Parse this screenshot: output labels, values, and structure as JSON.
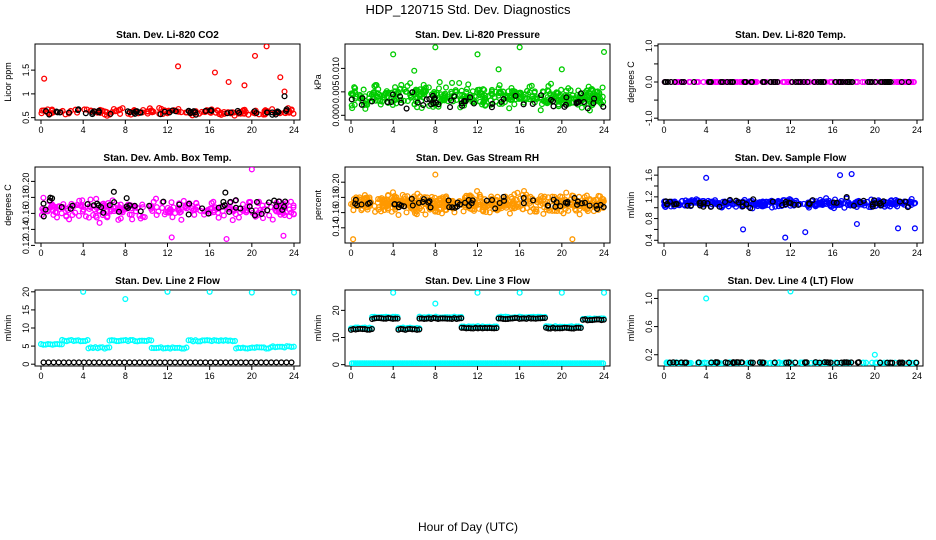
{
  "page": {
    "title": "HDP_120715  Std. Dev. Diagnostics",
    "x_axis_label": "Hour of Day (UTC)"
  },
  "chart_data": [
    {
      "type": "scatter",
      "title": "Stan. Dev. Li-820 CO2",
      "ylabel": "Licor ppm",
      "xlim": [
        0,
        24
      ],
      "ylim": [
        0.45,
        2.05
      ],
      "x_ticks": [
        0,
        4,
        8,
        12,
        16,
        20,
        24
      ],
      "y_ticks": [
        0.5,
        1.0,
        1.5
      ],
      "y_tick_labels": [
        "0.5",
        "1",
        "1.5"
      ],
      "series": [
        {
          "color": "#ff0000",
          "base": 0.62,
          "spread": 0.12,
          "count": 150,
          "outliers": [
            [
              0.3,
              1.32
            ],
            [
              13.0,
              1.58
            ],
            [
              16.5,
              1.45
            ],
            [
              17.8,
              1.25
            ],
            [
              19.3,
              1.18
            ],
            [
              20.3,
              1.8
            ],
            [
              21.4,
              2.0
            ],
            [
              22.7,
              1.35
            ],
            [
              23.1,
              1.05
            ]
          ]
        },
        {
          "color": "#000000",
          "base": 0.62,
          "spread": 0.09,
          "count": 55,
          "outliers": [
            [
              23.1,
              0.95
            ]
          ]
        }
      ]
    },
    {
      "type": "scatter",
      "title": "Stan. Dev. Li-820 Pressure",
      "ylabel": "kPa",
      "xlim": [
        0,
        24
      ],
      "ylim": [
        -0.001,
        0.0152
      ],
      "x_ticks": [
        0,
        4,
        8,
        12,
        16,
        20,
        24
      ],
      "y_ticks": [
        0.0,
        0.005,
        0.01
      ],
      "y_tick_labels": [
        "0.000",
        "0.005",
        "0.010"
      ],
      "series": [
        {
          "color": "#00cc00",
          "base": 0.004,
          "spread": 0.004,
          "count": 420,
          "outliers": [
            [
              4.0,
              0.013
            ],
            [
              8.0,
              0.0145
            ],
            [
              12.0,
              0.013
            ],
            [
              16.0,
              0.0145
            ],
            [
              20.0,
              0.0098
            ],
            [
              24.0,
              0.0135
            ],
            [
              6.0,
              0.0095
            ],
            [
              14.0,
              0.0098
            ]
          ]
        },
        {
          "color": "#000000",
          "base": 0.003,
          "spread": 0.003,
          "count": 55,
          "outliers": []
        }
      ]
    },
    {
      "type": "scatter",
      "title": "Stan. Dev. Li-820 Temp.",
      "ylabel": "degrees C",
      "xlim": [
        0,
        24
      ],
      "ylim": [
        -1.05,
        1.05
      ],
      "x_ticks": [
        0,
        4,
        8,
        12,
        16,
        20,
        24
      ],
      "y_ticks": [
        -1.0,
        -0.5,
        0.0,
        0.5,
        1.0
      ],
      "y_tick_labels": [
        "-1.0",
        "",
        "0.0",
        "",
        "1.0"
      ],
      "series": [
        {
          "color": "#ff00ff",
          "base": 0.0,
          "spread": 0.0,
          "count": 150,
          "outliers": []
        },
        {
          "color": "#000000",
          "base": 0.0,
          "spread": 0.0,
          "count": 70,
          "outliers": []
        }
      ]
    },
    {
      "type": "scatter",
      "title": "Stan. Dev. Amb. Box Temp.",
      "ylabel": "degrees C",
      "xlim": [
        0,
        24
      ],
      "ylim": [
        0.123,
        0.218
      ],
      "x_ticks": [
        0,
        4,
        8,
        12,
        16,
        20,
        24
      ],
      "y_ticks": [
        0.12,
        0.14,
        0.16,
        0.18,
        0.2
      ],
      "y_tick_labels": [
        "0.12",
        "0.14",
        "0.16",
        "0.18",
        "0.20"
      ],
      "series": [
        {
          "color": "#ff00ff",
          "base": 0.165,
          "spread": 0.022,
          "count": 260,
          "outliers": [
            [
              20.0,
              0.215
            ],
            [
              17.6,
              0.128
            ],
            [
              23.0,
              0.132
            ],
            [
              12.4,
              0.13
            ]
          ]
        },
        {
          "color": "#000000",
          "base": 0.17,
          "spread": 0.02,
          "count": 55,
          "outliers": []
        }
      ]
    },
    {
      "type": "scatter",
      "title": "Stan. Dev. Gas Stream RH",
      "ylabel": "percent",
      "xlim": [
        0,
        24
      ],
      "ylim": [
        0.12,
        0.22
      ],
      "x_ticks": [
        0,
        4,
        8,
        12,
        16,
        20,
        24
      ],
      "y_ticks": [
        0.14,
        0.16,
        0.18,
        0.2
      ],
      "y_tick_labels": [
        "0.14",
        "0.16",
        "0.18",
        "0.20"
      ],
      "series": [
        {
          "color": "#ff9900",
          "base": 0.172,
          "spread": 0.02,
          "count": 520,
          "outliers": [
            [
              0.2,
              0.125
            ],
            [
              8.0,
              0.21
            ],
            [
              21.0,
              0.125
            ]
          ]
        },
        {
          "color": "#000000",
          "base": 0.172,
          "spread": 0.015,
          "count": 60,
          "outliers": []
        }
      ]
    },
    {
      "type": "scatter",
      "title": "Stan. Dev. Sample Flow",
      "ylabel": "ml/min",
      "xlim": [
        0,
        24
      ],
      "ylim": [
        0.35,
        1.75
      ],
      "x_ticks": [
        0,
        4,
        8,
        12,
        16,
        20,
        24
      ],
      "y_ticks": [
        0.4,
        0.6,
        0.8,
        1.0,
        1.2,
        1.4,
        1.6
      ],
      "y_tick_labels": [
        "0.4",
        "",
        "0.8",
        "",
        "1.2",
        "",
        "1.6"
      ],
      "series": [
        {
          "color": "#0000ff",
          "base": 1.08,
          "spread": 0.12,
          "count": 330,
          "outliers": [
            [
              11.5,
              0.45
            ],
            [
              13.4,
              0.55
            ],
            [
              7.5,
              0.6
            ],
            [
              22.2,
              0.62
            ],
            [
              23.8,
              0.62
            ],
            [
              16.7,
              1.6
            ],
            [
              17.8,
              1.62
            ],
            [
              4.0,
              1.55
            ],
            [
              18.3,
              0.7
            ]
          ]
        },
        {
          "color": "#000000",
          "base": 1.08,
          "spread": 0.14,
          "count": 55,
          "outliers": []
        }
      ]
    },
    {
      "type": "scatter",
      "title": "Stan. Dev. Line 2 Flow",
      "ylabel": "ml/min",
      "xlim": [
        0,
        24
      ],
      "ylim": [
        -0.5,
        20.5
      ],
      "x_ticks": [
        0,
        4,
        8,
        12,
        16,
        20,
        24
      ],
      "y_ticks": [
        0,
        5,
        10,
        15,
        20
      ],
      "y_tick_labels": [
        "0",
        "5",
        "10",
        "15",
        "20"
      ],
      "series": [
        {
          "color": "#00ffff",
          "stepped": true,
          "segments": [
            [
              0.0,
              2.0,
              5.5
            ],
            [
              2.0,
              4.5,
              6.5
            ],
            [
              4.5,
              6.5,
              4.5
            ],
            [
              6.5,
              10.5,
              6.5
            ],
            [
              10.5,
              14.0,
              4.5
            ],
            [
              14.0,
              18.5,
              6.5
            ],
            [
              18.5,
              22.0,
              4.5
            ],
            [
              22.0,
              24.0,
              4.8
            ]
          ],
          "outliers": [
            [
              4.0,
              20.0
            ],
            [
              8.0,
              18.0
            ],
            [
              12.0,
              20.0
            ],
            [
              16.0,
              20.0
            ],
            [
              20.0,
              19.8
            ],
            [
              24.0,
              19.8
            ]
          ]
        },
        {
          "color": "#000000",
          "constant": 0.5,
          "count": 50
        }
      ]
    },
    {
      "type": "scatter",
      "title": "Stan. Dev. Line 3 Flow",
      "ylabel": "ml/min",
      "xlim": [
        0,
        24
      ],
      "ylim": [
        -0.5,
        27.5
      ],
      "x_ticks": [
        0,
        4,
        8,
        12,
        16,
        20,
        24
      ],
      "y_ticks": [
        0,
        10,
        20
      ],
      "y_tick_labels": [
        "0",
        "10",
        "20"
      ],
      "series": [
        {
          "color": "#00ffff",
          "stepped": true,
          "segments": [
            [
              0.0,
              2.0,
              13.5
            ],
            [
              2.0,
              4.5,
              17.5
            ],
            [
              4.5,
              6.5,
              13.5
            ],
            [
              6.5,
              10.5,
              17.5
            ],
            [
              10.5,
              14.0,
              14.0
            ],
            [
              14.0,
              18.5,
              17.5
            ],
            [
              18.5,
              22.0,
              14.0
            ],
            [
              22.0,
              24.0,
              17.0
            ]
          ],
          "outliers": [
            [
              4.0,
              26.5
            ],
            [
              8.0,
              22.5
            ],
            [
              12.0,
              26.5
            ],
            [
              16.0,
              26.5
            ],
            [
              20.0,
              26.5
            ],
            [
              24.0,
              26.5
            ]
          ]
        },
        {
          "color": "#00ffff",
          "constant": 0.5,
          "count": 140
        },
        {
          "color": "#000000",
          "stepped": true,
          "segments": [
            [
              0.0,
              2.0,
              13.0
            ],
            [
              2.0,
              4.5,
              17.0
            ],
            [
              4.5,
              6.5,
              13.0
            ],
            [
              6.5,
              10.5,
              17.0
            ],
            [
              10.5,
              14.0,
              13.5
            ],
            [
              14.0,
              18.5,
              17.0
            ],
            [
              18.5,
              22.0,
              13.5
            ],
            [
              22.0,
              24.0,
              16.5
            ]
          ],
          "outliers": []
        }
      ]
    },
    {
      "type": "scatter",
      "title": "Stan. Dev. Line 4 (LT) Flow",
      "ylabel": "ml/min",
      "xlim": [
        0,
        24
      ],
      "ylim": [
        0.04,
        1.12
      ],
      "x_ticks": [
        0,
        4,
        8,
        12,
        16,
        20,
        24
      ],
      "y_ticks": [
        0.2,
        0.6,
        1.0
      ],
      "y_tick_labels": [
        "0.2",
        "0.6",
        "1.0"
      ],
      "series": [
        {
          "color": "#00ffff",
          "base": 0.085,
          "spread": 0.01,
          "count": 110,
          "outliers": [
            [
              4.0,
              1.0
            ],
            [
              12.0,
              1.1
            ],
            [
              20.0,
              0.2
            ]
          ]
        },
        {
          "color": "#000000",
          "base": 0.09,
          "spread": 0.01,
          "count": 60,
          "outliers": []
        }
      ]
    }
  ]
}
